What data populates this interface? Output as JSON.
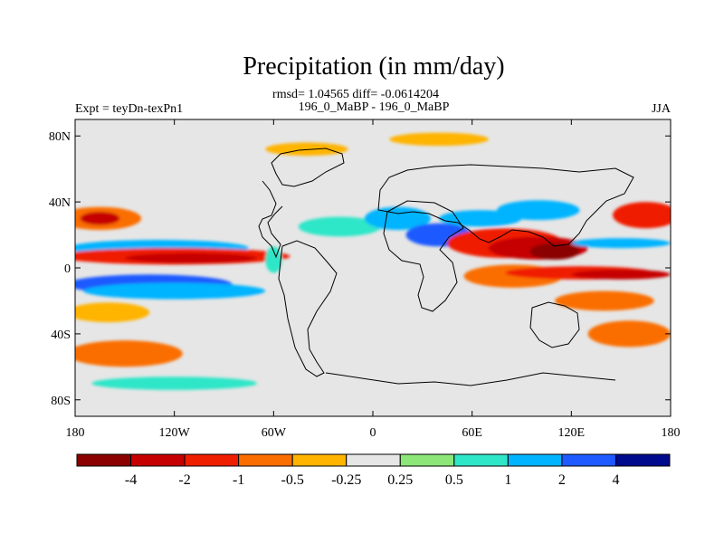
{
  "chart_data": {
    "type": "heatmap",
    "title": "Precipitation (in mm/day)",
    "subtitle": "rmsd= 1.04565 diff= -0.0614204",
    "left_label": "Expt = teyDn-texPn1",
    "center_label": "196_0_MaBP - 196_0_MaBP",
    "right_label": "JJA",
    "xlim": [
      -180,
      180
    ],
    "ylim": [
      -90,
      90
    ],
    "x_ticks": [
      {
        "value": -180,
        "label": "180"
      },
      {
        "value": -120,
        "label": "120W"
      },
      {
        "value": -60,
        "label": "60W"
      },
      {
        "value": 0,
        "label": "0"
      },
      {
        "value": 60,
        "label": "60E"
      },
      {
        "value": 120,
        "label": "120E"
      },
      {
        "value": 180,
        "label": "180"
      }
    ],
    "y_ticks": [
      {
        "value": 80,
        "label": "80N"
      },
      {
        "value": 40,
        "label": "40N"
      },
      {
        "value": 0,
        "label": "0"
      },
      {
        "value": -40,
        "label": "40S"
      },
      {
        "value": -80,
        "label": "80S"
      }
    ],
    "colorbar": {
      "colors": [
        "#8b0000",
        "#c60000",
        "#f01e00",
        "#fa6e00",
        "#ffb400",
        "#e6e6e6",
        "#8ce678",
        "#2ee6c8",
        "#00b4ff",
        "#1e5aff",
        "#000a8c"
      ],
      "labels": [
        "-4",
        "-2",
        "-1",
        "-0.5",
        "-0.25",
        "0.25",
        "0.5",
        "1",
        "2",
        "4"
      ]
    },
    "features": [
      {
        "lon": -165,
        "lat": 30,
        "rx": 25,
        "ry": 7,
        "value": -1
      },
      {
        "lon": -165,
        "lat": 30,
        "rx": 12,
        "ry": 4,
        "value": -2.5
      },
      {
        "lon": -130,
        "lat": 12,
        "rx": 55,
        "ry": 5,
        "value": 1.5
      },
      {
        "lon": -120,
        "lat": 7,
        "rx": 70,
        "ry": 5,
        "value": -1.5
      },
      {
        "lon": -110,
        "lat": 6,
        "rx": 40,
        "ry": 3,
        "value": -3
      },
      {
        "lon": -135,
        "lat": -10,
        "rx": 50,
        "ry": 6,
        "value": 2.5
      },
      {
        "lon": -120,
        "lat": -14,
        "rx": 55,
        "ry": 5,
        "value": 1.5
      },
      {
        "lon": -160,
        "lat": -27,
        "rx": 25,
        "ry": 6,
        "value": -0.5
      },
      {
        "lon": -150,
        "lat": -52,
        "rx": 35,
        "ry": 8,
        "value": -0.75
      },
      {
        "lon": -60,
        "lat": 5,
        "rx": 5,
        "ry": 8,
        "value": 0.5
      },
      {
        "lon": -20,
        "lat": 25,
        "rx": 25,
        "ry": 6,
        "value": 0.75
      },
      {
        "lon": 15,
        "lat": 30,
        "rx": 20,
        "ry": 7,
        "value": 1
      },
      {
        "lon": 40,
        "lat": 20,
        "rx": 20,
        "ry": 7,
        "value": 2
      },
      {
        "lon": 45,
        "lat": 17,
        "rx": 10,
        "ry": 4,
        "value": 3
      },
      {
        "lon": 65,
        "lat": 30,
        "rx": 25,
        "ry": 5,
        "value": 1.5
      },
      {
        "lon": 80,
        "lat": 15,
        "rx": 35,
        "ry": 9,
        "value": -1.5
      },
      {
        "lon": 100,
        "lat": 12,
        "rx": 30,
        "ry": 7,
        "value": -3
      },
      {
        "lon": 110,
        "lat": 10,
        "rx": 15,
        "ry": 5,
        "value": -5
      },
      {
        "lon": 85,
        "lat": -5,
        "rx": 30,
        "ry": 7,
        "value": -1
      },
      {
        "lon": 125,
        "lat": -3,
        "rx": 45,
        "ry": 4,
        "value": -2
      },
      {
        "lon": 150,
        "lat": -4,
        "rx": 30,
        "ry": 3,
        "value": -4
      },
      {
        "lon": 140,
        "lat": -20,
        "rx": 30,
        "ry": 6,
        "value": -1
      },
      {
        "lon": 155,
        "lat": -40,
        "rx": 25,
        "ry": 8,
        "value": -1
      },
      {
        "lon": 165,
        "lat": 32,
        "rx": 20,
        "ry": 8,
        "value": -1.5
      },
      {
        "lon": 150,
        "lat": 15,
        "rx": 30,
        "ry": 3,
        "value": 1.5
      },
      {
        "lon": 100,
        "lat": 35,
        "rx": 25,
        "ry": 6,
        "value": 1.5
      },
      {
        "lon": -40,
        "lat": 72,
        "rx": 25,
        "ry": 4,
        "value": -0.5
      },
      {
        "lon": 40,
        "lat": 78,
        "rx": 30,
        "ry": 4,
        "value": -0.5
      },
      {
        "lon": -120,
        "lat": -70,
        "rx": 50,
        "ry": 4,
        "value": 0.5
      }
    ]
  }
}
